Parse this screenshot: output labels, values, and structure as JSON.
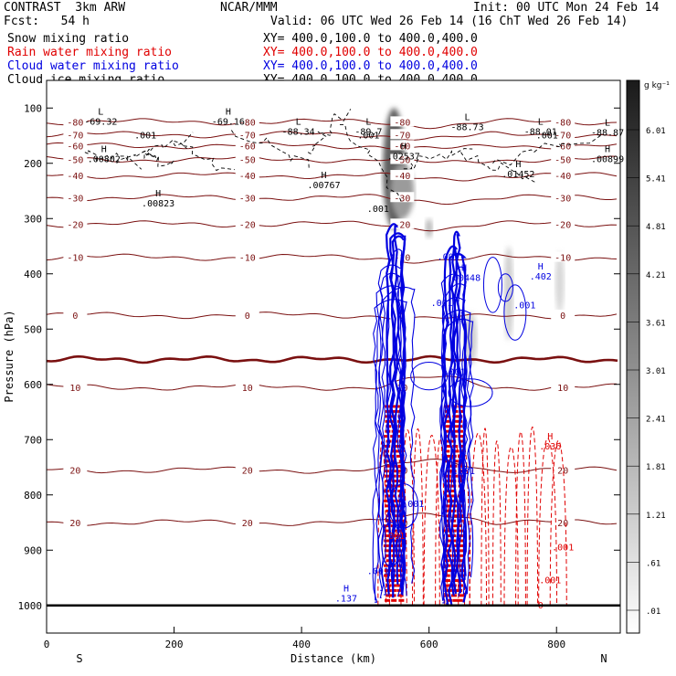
{
  "header": {
    "left1": "CONTRAST  3km ARW",
    "left2": "Fcst:   54 h",
    "center1": "NCAR/MMM",
    "init": "Init: 00 UTC Mon 24 Feb 14",
    "valid": "Valid: 06 UTC Wed 26 Feb 14 (16 ChT Wed 26 Feb 14)",
    "fields": [
      {
        "name": "Snow mixing ratio",
        "xy": "XY= 400.0,100.0 to 400.0,400.0",
        "color": "#000000"
      },
      {
        "name": "Rain water mixing ratio",
        "xy": "XY= 400.0,100.0 to 400.0,400.0",
        "color": "#e00000"
      },
      {
        "name": "Cloud water mixing ratio",
        "xy": "XY= 400.0,100.0 to 400.0,400.0",
        "color": "#0000e0"
      },
      {
        "name": "Cloud ice mixing ratio",
        "xy": "XY= 400.0,100.0 to 400.0,400.0",
        "color": "#000000"
      }
    ]
  },
  "chart_data": {
    "type": "contour-cross-section",
    "xlabel": "Distance (km)",
    "ylabel": "Pressure (hPa)",
    "xlim": [
      0,
      900
    ],
    "ylim": [
      1050,
      50
    ],
    "x_ticks": [
      0,
      200,
      400,
      600,
      800
    ],
    "y_ticks": [
      100,
      200,
      300,
      400,
      500,
      600,
      700,
      800,
      900,
      1000
    ],
    "x_end_labels": {
      "left": "S",
      "right": "N"
    },
    "colorbar": {
      "unit": "g kg⁻¹",
      "levels": [
        "6.01",
        "5.41",
        "4.81",
        "4.21",
        "3.61",
        "3.01",
        "2.41",
        "1.81",
        "1.21",
        ".61",
        ".01"
      ]
    },
    "temperature_contours": [
      {
        "label": "-80",
        "p": 125
      },
      {
        "label": "-70",
        "p": 148
      },
      {
        "label": "-60",
        "p": 168
      },
      {
        "label": "-50",
        "p": 193
      },
      {
        "label": "-40",
        "p": 222
      },
      {
        "label": "-30",
        "p": 262
      },
      {
        "label": "-20",
        "p": 310
      },
      {
        "label": "-10",
        "p": 370
      },
      {
        "label": "0",
        "p": 475
      },
      {
        "label": "10",
        "p": 605
      },
      {
        "label": "20",
        "p": 755
      },
      {
        "label": "20",
        "p": 850
      }
    ],
    "freezing_level_hPa": 555,
    "cloud_ice_extrema": [
      {
        "text": "-69.32",
        "x": 85,
        "p": 130,
        "kind": "L"
      },
      {
        "text": "-69.16",
        "x": 285,
        "p": 130,
        "kind": "H"
      },
      {
        "text": "-88.34",
        "x": 395,
        "p": 148,
        "kind": "L"
      },
      {
        "text": "-89.7",
        "x": 505,
        "p": 148,
        "kind": "L"
      },
      {
        "text": "-88.73",
        "x": 660,
        "p": 140,
        "kind": "L"
      },
      {
        "text": "-88.01",
        "x": 775,
        "p": 148,
        "kind": "L"
      },
      {
        "text": "-88.87",
        "x": 880,
        "p": 150,
        "kind": "L"
      },
      {
        "text": ".00802",
        "x": 90,
        "p": 198,
        "kind": "H"
      },
      {
        "text": ".00823",
        "x": 175,
        "p": 278,
        "kind": "H"
      },
      {
        "text": ".00767",
        "x": 435,
        "p": 245,
        "kind": "H"
      },
      {
        "text": ".02537",
        "x": 560,
        "p": 193,
        "kind": "H"
      },
      {
        "text": ".01452",
        "x": 740,
        "p": 225,
        "kind": "H"
      },
      {
        "text": ".00899",
        "x": 880,
        "p": 198,
        "kind": "H"
      },
      {
        "text": ".001",
        "x": 155,
        "p": 155,
        "kind": "val"
      },
      {
        "text": ".001",
        "x": 505,
        "p": 155,
        "kind": "val"
      },
      {
        "text": ".001",
        "x": 785,
        "p": 155,
        "kind": "val"
      },
      {
        "text": ".001",
        "x": 520,
        "p": 288,
        "kind": "val"
      }
    ],
    "cloud_water_labels": [
      {
        "text": ".001",
        "x": 630,
        "p": 375,
        "kind": "val"
      },
      {
        "text": ".00448",
        "x": 655,
        "p": 413,
        "kind": "H"
      },
      {
        "text": ".402",
        "x": 775,
        "p": 410,
        "kind": "H"
      },
      {
        "text": ".001",
        "x": 750,
        "p": 462,
        "kind": "val"
      },
      {
        "text": ".001",
        "x": 620,
        "p": 458,
        "kind": "val"
      },
      {
        "text": ".001",
        "x": 640,
        "p": 583,
        "kind": "val"
      },
      {
        "text": ".001",
        "x": 655,
        "p": 762,
        "kind": "val"
      },
      {
        "text": ".001",
        "x": 575,
        "p": 822,
        "kind": "val"
      },
      {
        "text": ".001",
        "x": 520,
        "p": 943,
        "kind": "val"
      },
      {
        "text": ".137",
        "x": 470,
        "p": 993,
        "kind": "H"
      }
    ],
    "rain_labels": [
      {
        "text": ".036",
        "x": 790,
        "p": 718,
        "kind": "H"
      },
      {
        "text": ".001",
        "x": 810,
        "p": 900,
        "kind": "val"
      },
      {
        "text": ".001",
        "x": 790,
        "p": 960,
        "kind": "val"
      },
      {
        "text": "0",
        "x": 775,
        "p": 1005,
        "kind": "val"
      },
      {
        "text": ".001",
        "x": 545,
        "p": 880,
        "kind": "val"
      }
    ],
    "snow_shading": [
      {
        "x": 545,
        "p_top": 100,
        "p_bot": 320,
        "width": 24,
        "intensity": 0.8
      },
      {
        "x": 558,
        "p_top": 200,
        "p_bot": 300,
        "width": 26,
        "intensity": 0.5
      },
      {
        "x": 600,
        "p_top": 300,
        "p_bot": 335,
        "width": 8,
        "intensity": 0.35
      },
      {
        "x": 725,
        "p_top": 350,
        "p_bot": 520,
        "width": 10,
        "intensity": 0.25
      },
      {
        "x": 805,
        "p_top": 360,
        "p_bot": 470,
        "width": 10,
        "intensity": 0.2
      },
      {
        "x": 665,
        "p_top": 470,
        "p_bot": 565,
        "width": 14,
        "intensity": 0.25
      }
    ],
    "convective_columns": [
      {
        "x": 545,
        "p_top": 300,
        "p_bot": 1000
      },
      {
        "x": 640,
        "p_top": 330,
        "p_bot": 1000
      }
    ]
  }
}
